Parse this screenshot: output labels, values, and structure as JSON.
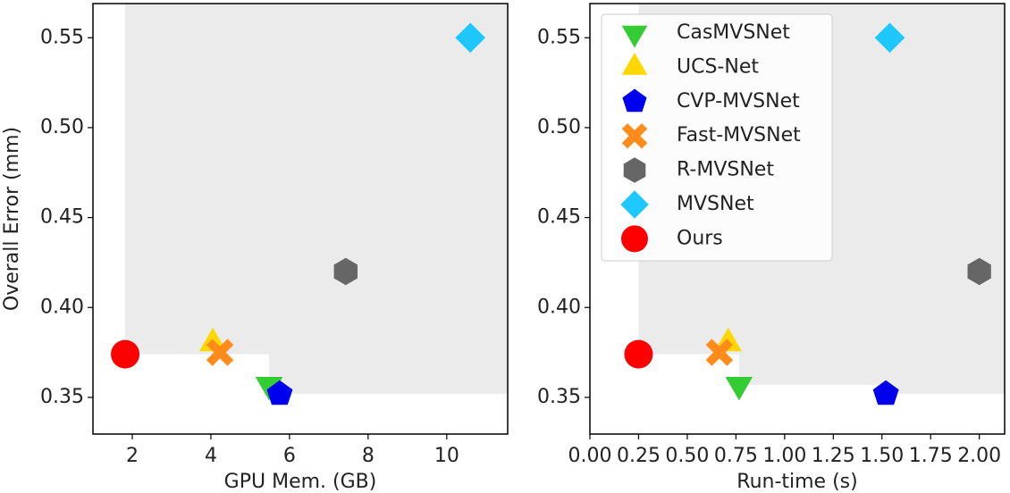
{
  "chart_data": [
    {
      "type": "scatter",
      "xlabel": "GPU Mem. (GB)",
      "ylabel": "Overall Error (mm)",
      "xlim": [
        1.0,
        11.55
      ],
      "ylim": [
        0.3296,
        0.569
      ],
      "xticks": [
        2,
        4,
        6,
        8,
        10
      ],
      "yticks": [
        0.35,
        {
          "value": 0.4,
          "label": "0.40"
        },
        0.45,
        {
          "value": 0.5,
          "label": "0.50"
        },
        0.55
      ],
      "legend": false,
      "series": [
        {
          "name": "CasMVSNet",
          "color": "#33cc33",
          "marker": "down-triangle",
          "x": [
            5.48
          ],
          "values": [
            0.357
          ]
        },
        {
          "name": "UCS-Net",
          "color": "#ffd700",
          "marker": "triangle",
          "x": [
            4.05
          ],
          "values": [
            0.38
          ]
        },
        {
          "name": "CVP-MVSNet",
          "color": "#0000ee",
          "marker": "pentagon",
          "x": [
            5.75
          ],
          "values": [
            0.352
          ]
        },
        {
          "name": "Fast-MVSNet",
          "color": "#ff8c1a",
          "marker": "x",
          "x": [
            4.23
          ],
          "values": [
            0.375
          ]
        },
        {
          "name": "R-MVSNet",
          "color": "#666666",
          "marker": "hexagon",
          "x": [
            7.43
          ],
          "values": [
            0.42
          ]
        },
        {
          "name": "MVSNet",
          "color": "#1ec8ff",
          "marker": "diamond",
          "x": [
            10.6
          ],
          "values": [
            0.55
          ]
        },
        {
          "name": "Ours",
          "color": "#ff0000",
          "marker": "circle",
          "x": [
            1.82
          ],
          "values": [
            0.374
          ]
        }
      ]
    },
    {
      "type": "scatter",
      "xlabel": "Run-time (s)",
      "xlim": [
        0.0,
        2.13
      ],
      "ylim": [
        0.3296,
        0.569
      ],
      "xticks": [
        {
          "value": 0,
          "label": "0.00"
        },
        0.25,
        {
          "value": 0.5,
          "label": "0.50"
        },
        0.75,
        {
          "value": 1,
          "label": "1.00"
        },
        1.25,
        {
          "value": 1.5,
          "label": "1.50"
        },
        1.75,
        {
          "value": 2,
          "label": "2.00"
        }
      ],
      "yticks": [
        0.35,
        {
          "value": 0.4,
          "label": "0.40"
        },
        0.45,
        {
          "value": 0.5,
          "label": "0.50"
        },
        0.55
      ],
      "legend": "upper left",
      "series": [
        {
          "name": "CasMVSNet",
          "color": "#33cc33",
          "marker": "down-triangle",
          "x": [
            0.766
          ],
          "values": [
            0.357
          ]
        },
        {
          "name": "UCS-Net",
          "color": "#ffd700",
          "marker": "triangle",
          "x": [
            0.71
          ],
          "values": [
            0.38
          ]
        },
        {
          "name": "CVP-MVSNet",
          "color": "#0000ee",
          "marker": "pentagon",
          "x": [
            1.52
          ],
          "values": [
            0.352
          ]
        },
        {
          "name": "Fast-MVSNet",
          "color": "#ff8c1a",
          "marker": "x",
          "x": [
            0.665
          ],
          "values": [
            0.375
          ]
        },
        {
          "name": "R-MVSNet",
          "color": "#666666",
          "marker": "hexagon",
          "x": [
            2.0
          ],
          "values": [
            0.42
          ]
        },
        {
          "name": "MVSNet",
          "color": "#1ec8ff",
          "marker": "diamond",
          "x": [
            1.54
          ],
          "values": [
            0.55
          ]
        },
        {
          "name": "Ours",
          "color": "#ff0000",
          "marker": "circle",
          "x": [
            0.25
          ],
          "values": [
            0.374
          ]
        }
      ]
    }
  ]
}
